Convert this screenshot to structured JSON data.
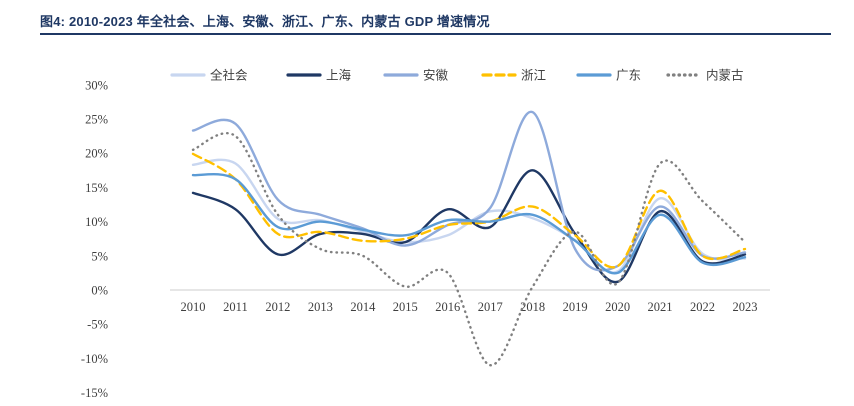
{
  "figure": {
    "title": "图4: 2010-2023 年全社会、上海、安徽、浙江、广东、内蒙古 GDP 增速情况",
    "accent_color": "#1f3864"
  },
  "chart_data": {
    "type": "line",
    "x": [
      2010,
      2011,
      2012,
      2013,
      2014,
      2015,
      2016,
      2017,
      2018,
      2019,
      2020,
      2021,
      2022,
      2023
    ],
    "yticks": [
      30,
      25,
      20,
      15,
      10,
      5,
      0,
      -5,
      -10,
      -15
    ],
    "ylim": [
      -15,
      30
    ],
    "y_unit": "%",
    "grid": false,
    "legend_position": "top",
    "series": [
      {
        "id": "national",
        "name": "全社会",
        "color": "#c8d6f0",
        "style": "solid",
        "values": [
          18.3,
          18.5,
          10.4,
          10.2,
          8.5,
          7.0,
          8.0,
          11.5,
          10.5,
          7.3,
          2.7,
          13.4,
          5.3,
          4.6
        ]
      },
      {
        "id": "shanghai",
        "name": "上海",
        "color": "#1f3864",
        "style": "solid",
        "values": [
          14.2,
          11.8,
          5.2,
          8.2,
          8.2,
          7.0,
          11.8,
          9.2,
          17.5,
          8.2,
          1.2,
          11.5,
          4.2,
          5.2
        ]
      },
      {
        "id": "anhui",
        "name": "安徽",
        "color": "#8eaadb",
        "style": "solid",
        "values": [
          23.3,
          24.3,
          13.2,
          11.0,
          9.0,
          6.5,
          9.5,
          12.0,
          26.0,
          6.0,
          3.5,
          12.2,
          5.0,
          5.5
        ]
      },
      {
        "id": "zhejiang",
        "name": "浙江",
        "color": "#ffc000",
        "style": "dashed",
        "values": [
          19.9,
          16.2,
          8.2,
          8.5,
          7.2,
          7.5,
          9.5,
          10.0,
          12.2,
          8.0,
          3.5,
          14.5,
          5.0,
          6.0
        ]
      },
      {
        "id": "guangdong",
        "name": "广东",
        "color": "#5b9bd5",
        "style": "solid",
        "values": [
          16.8,
          16.2,
          9.2,
          10.0,
          8.8,
          8.0,
          10.2,
          10.0,
          11.0,
          7.2,
          2.5,
          11.0,
          4.0,
          4.8
        ]
      },
      {
        "id": "inner-mongolia",
        "name": "内蒙古",
        "color": "#808080",
        "style": "dotted",
        "values": [
          20.5,
          22.5,
          11.0,
          6.0,
          5.0,
          0.5,
          2.5,
          -11.0,
          0.5,
          8.5,
          1.0,
          18.5,
          13.0,
          7.0
        ]
      }
    ]
  }
}
